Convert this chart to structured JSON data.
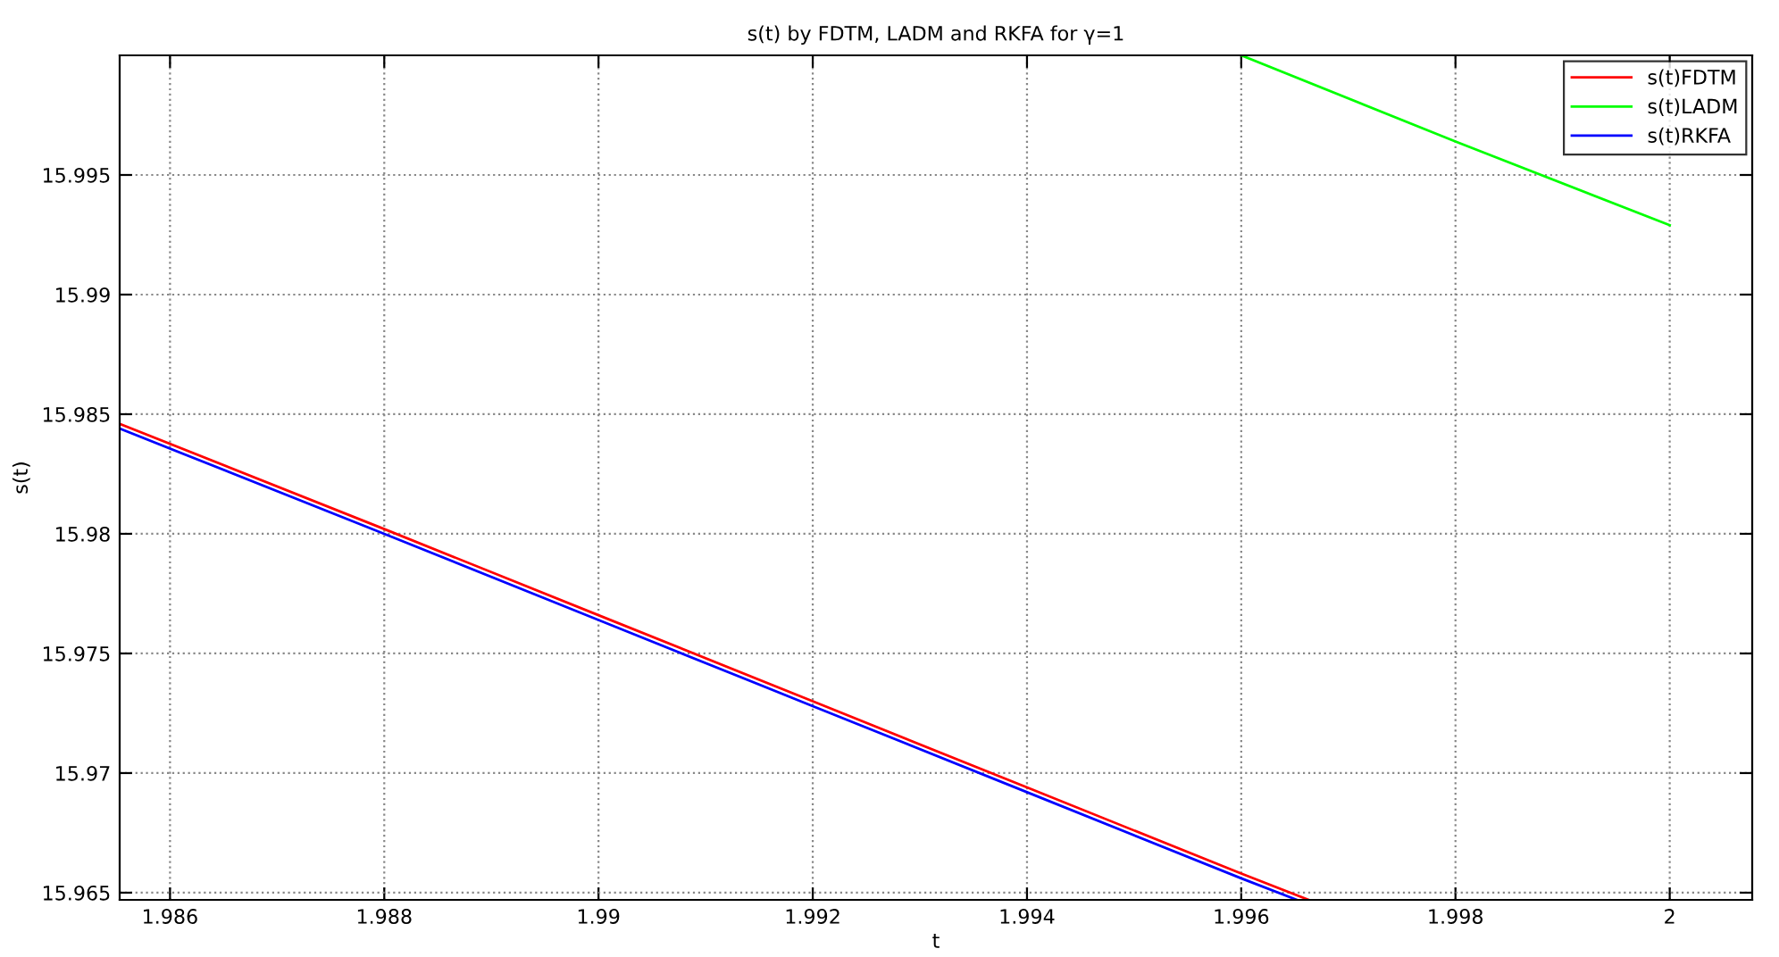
{
  "chart_data": {
    "type": "line",
    "title": "s(t) by FDTM, LADM and RKFA for γ=1",
    "xlabel": "t",
    "ylabel": "s(t)",
    "series": [
      {
        "name": "s(t)FDTM",
        "color": "#ff0000",
        "x": [
          1.98553,
          1.988,
          1.99,
          1.992,
          1.994,
          1.996,
          1.99663
        ],
        "values": [
          15.9846,
          15.9802,
          15.9766,
          15.973,
          15.9694,
          15.9658,
          15.9647
        ]
      },
      {
        "name": "s(t)LADM",
        "color": "#00ff00",
        "x": [
          1.996,
          1.998,
          2
        ],
        "values": [
          16.0,
          15.9964,
          15.9929
        ]
      },
      {
        "name": "s(t)RKFA",
        "color": "#0000ff",
        "x": [
          1.98553,
          1.988,
          1.99,
          1.992,
          1.994,
          1.996,
          1.99652
        ],
        "values": [
          15.9844,
          15.98,
          15.9764,
          15.9728,
          15.9692,
          15.9656,
          15.9647
        ]
      }
    ],
    "xlim": [
      1.98553,
      2.00077
    ],
    "ylim": [
      15.9647,
      16.0
    ],
    "xticks": [
      1.986,
      1.988,
      1.99,
      1.992,
      1.994,
      1.996,
      1.998,
      2
    ],
    "yticks": [
      15.965,
      15.97,
      15.975,
      15.98,
      15.985,
      15.99,
      15.995
    ],
    "grid": true,
    "legend": "top right",
    "line_style": "solid",
    "marker": "none"
  }
}
